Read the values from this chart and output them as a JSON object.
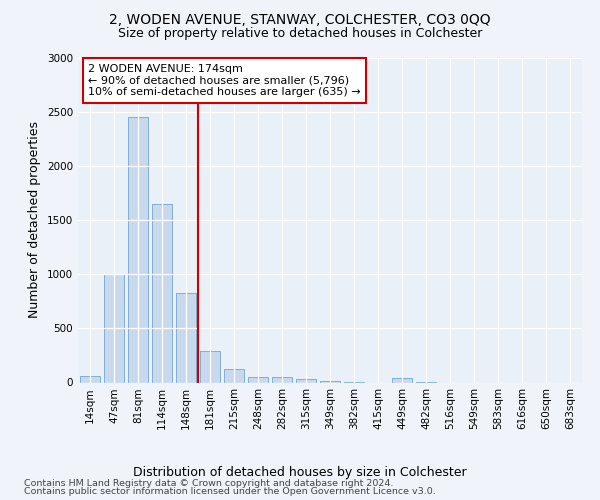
{
  "title": "2, WODEN AVENUE, STANWAY, COLCHESTER, CO3 0QQ",
  "subtitle": "Size of property relative to detached houses in Colchester",
  "xlabel": "Distribution of detached houses by size in Colchester",
  "ylabel": "Number of detached properties",
  "footer_line1": "Contains HM Land Registry data © Crown copyright and database right 2024.",
  "footer_line2": "Contains public sector information licensed under the Open Government Licence v3.0.",
  "categories": [
    "14sqm",
    "47sqm",
    "81sqm",
    "114sqm",
    "148sqm",
    "181sqm",
    "215sqm",
    "248sqm",
    "282sqm",
    "315sqm",
    "349sqm",
    "382sqm",
    "415sqm",
    "449sqm",
    "482sqm",
    "516sqm",
    "549sqm",
    "583sqm",
    "616sqm",
    "650sqm",
    "683sqm"
  ],
  "values": [
    60,
    1000,
    2450,
    1650,
    830,
    290,
    125,
    55,
    50,
    30,
    15,
    5,
    0,
    40,
    5,
    0,
    0,
    0,
    0,
    0,
    0
  ],
  "bar_color": "#c8d9ee",
  "bar_edge_color": "#7fafd4",
  "annotation_text": "2 WODEN AVENUE: 174sqm\n← 90% of detached houses are smaller (5,796)\n10% of semi-detached houses are larger (635) →",
  "annotation_box_color": "#ffffff",
  "annotation_box_edge_color": "#cc0000",
  "vline_color": "#cc0000",
  "ylim": [
    0,
    3000
  ],
  "yticks": [
    0,
    500,
    1000,
    1500,
    2000,
    2500,
    3000
  ],
  "background_color": "#f0f4fa",
  "plot_background_color": "#eaf0f8",
  "title_fontsize": 10,
  "subtitle_fontsize": 9,
  "axis_label_fontsize": 9,
  "tick_fontsize": 7.5,
  "footer_fontsize": 6.8
}
